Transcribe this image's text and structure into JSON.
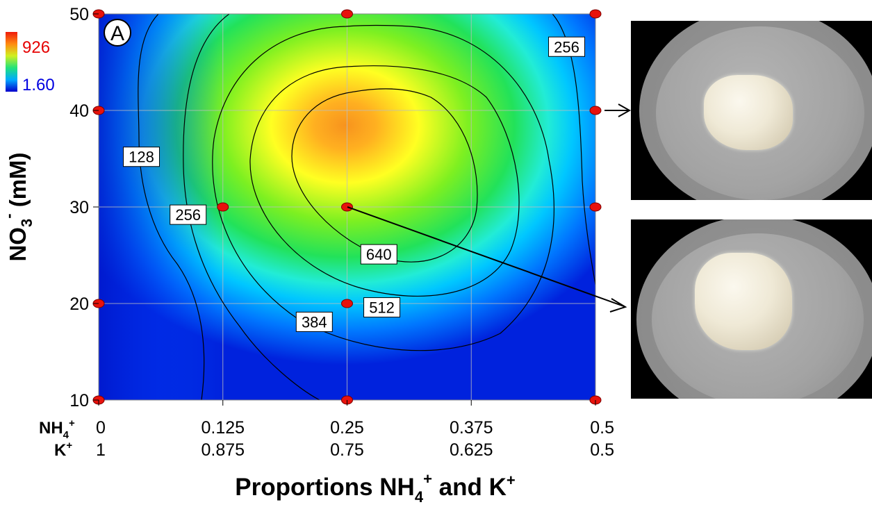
{
  "panel_label": "A",
  "colorbar": {
    "max_label": "926",
    "min_label": "1.60",
    "max_color": "#ff0000",
    "min_color": "#0000ff"
  },
  "chart_data": {
    "type": "heatmap",
    "xlabel_parts": {
      "prefix": "Proportions NH",
      "sub": "4",
      "sup1": "+",
      "mid": " and K",
      "sup2": "+"
    },
    "ylabel_parts": {
      "prefix": "NO",
      "sub": "3",
      "sup": "-",
      "suffix": " (mM)"
    },
    "x_row1_label": {
      "base": "NH",
      "sub": "4",
      "sup": "+"
    },
    "x_row2_label": {
      "base": "K",
      "sup": "+"
    },
    "x_ticks_nh4": [
      "0",
      "0.125",
      "0.25",
      "0.375",
      "0.5"
    ],
    "x_ticks_k": [
      "1",
      "0.875",
      "0.75",
      "0.625",
      "0.5"
    ],
    "x_values": [
      0,
      0.125,
      0.25,
      0.375,
      0.5
    ],
    "y_ticks": [
      "10",
      "20",
      "30",
      "40",
      "50"
    ],
    "xlim": [
      0,
      0.5
    ],
    "ylim": [
      10,
      50
    ],
    "color_range": [
      1.6,
      926
    ],
    "peak": {
      "x": 0.27,
      "y": 34,
      "value": 926
    },
    "contour_levels": [
      128,
      256,
      384,
      512,
      640
    ],
    "contour_labels": [
      {
        "text": "128",
        "x": 0.043,
        "y": 35.2
      },
      {
        "text": "256",
        "x": 0.09,
        "y": 29.2
      },
      {
        "text": "256",
        "x": 0.471,
        "y": 46.6
      },
      {
        "text": "384",
        "x": 0.217,
        "y": 18.1
      },
      {
        "text": "512",
        "x": 0.285,
        "y": 19.6
      },
      {
        "text": "640",
        "x": 0.282,
        "y": 25.1
      }
    ],
    "design_points": [
      {
        "x": 0,
        "y": 10
      },
      {
        "x": 0,
        "y": 20
      },
      {
        "x": 0,
        "y": 40
      },
      {
        "x": 0,
        "y": 50
      },
      {
        "x": 0.125,
        "y": 30
      },
      {
        "x": 0.25,
        "y": 10
      },
      {
        "x": 0.25,
        "y": 20
      },
      {
        "x": 0.25,
        "y": 30
      },
      {
        "x": 0.25,
        "y": 50
      },
      {
        "x": 0.5,
        "y": 10
      },
      {
        "x": 0.5,
        "y": 30
      },
      {
        "x": 0.5,
        "y": 40
      },
      {
        "x": 0.5,
        "y": 50
      }
    ],
    "grid": true
  },
  "photos": [
    {
      "name": "callus-photo-top",
      "linked_point": {
        "x": 0.5,
        "y": 40
      }
    },
    {
      "name": "callus-photo-bottom",
      "linked_point": {
        "x": 0.25,
        "y": 30
      }
    }
  ]
}
